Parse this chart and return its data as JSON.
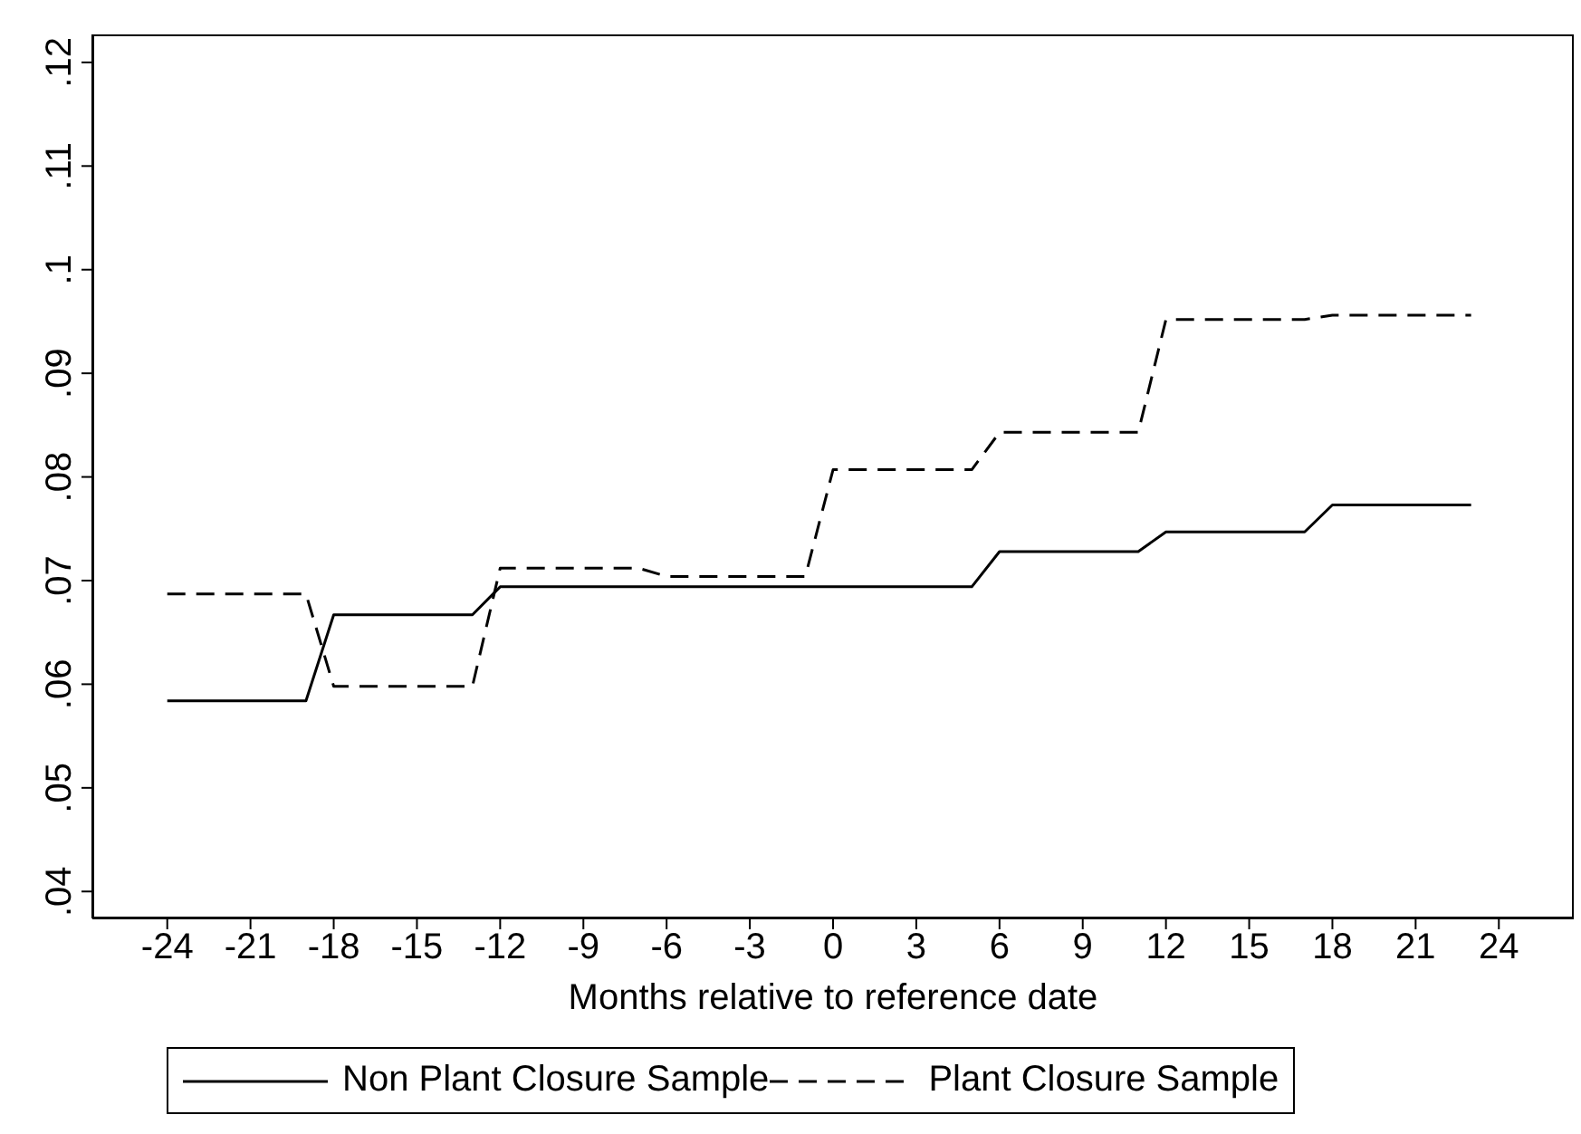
{
  "chart_data": {
    "type": "line",
    "xlabel": "Months relative to reference date",
    "x": [
      -24,
      -23,
      -22,
      -21,
      -20,
      -19,
      -18,
      -17,
      -16,
      -15,
      -14,
      -13,
      -12,
      -11,
      -10,
      -9,
      -8,
      -7,
      -6,
      -5,
      -4,
      -3,
      -2,
      -1,
      0,
      1,
      2,
      3,
      4,
      5,
      6,
      7,
      8,
      9,
      10,
      11,
      12,
      13,
      14,
      15,
      16,
      17,
      18,
      19,
      20,
      21,
      22,
      23
    ],
    "series": [
      {
        "name": "Non Plant Closure Sample",
        "color": "#000000",
        "line_style": "solid",
        "values": [
          0.0584,
          0.0584,
          0.0584,
          0.0584,
          0.0584,
          0.0584,
          0.0667,
          0.0667,
          0.0667,
          0.0667,
          0.0667,
          0.0667,
          0.0694,
          0.0694,
          0.0694,
          0.0694,
          0.0694,
          0.0694,
          0.0694,
          0.0694,
          0.0694,
          0.0694,
          0.0694,
          0.0694,
          0.0694,
          0.0694,
          0.0694,
          0.0694,
          0.0694,
          0.0694,
          0.0728,
          0.0728,
          0.0728,
          0.0728,
          0.0728,
          0.0728,
          0.0747,
          0.0747,
          0.0747,
          0.0747,
          0.0747,
          0.0747,
          0.0773,
          0.0773,
          0.0773,
          0.0773,
          0.0773,
          0.0773
        ]
      },
      {
        "name": "Plant Closure Sample",
        "color": "#000000",
        "line_style": "dashed",
        "values": [
          0.0687,
          0.0687,
          0.0687,
          0.0687,
          0.0687,
          0.0687,
          0.0598,
          0.0598,
          0.0598,
          0.0598,
          0.0598,
          0.0598,
          0.0712,
          0.0712,
          0.0712,
          0.0712,
          0.0712,
          0.0712,
          0.0704,
          0.0704,
          0.0704,
          0.0704,
          0.0704,
          0.0704,
          0.0807,
          0.0807,
          0.0807,
          0.0807,
          0.0807,
          0.0807,
          0.0843,
          0.0843,
          0.0843,
          0.0843,
          0.0843,
          0.0843,
          0.0952,
          0.0952,
          0.0952,
          0.0952,
          0.0952,
          0.0952,
          0.0956,
          0.0956,
          0.0956,
          0.0956,
          0.0956,
          0.0956
        ]
      }
    ],
    "xlim": [
      -26.7,
      26.7
    ],
    "xticks": [
      -24,
      -21,
      -18,
      -15,
      -12,
      -9,
      -6,
      -3,
      0,
      3,
      6,
      9,
      12,
      15,
      18,
      21,
      24
    ],
    "ylim": [
      0.0374,
      0.1227
    ],
    "yticks": [
      {
        "value": 0.04,
        "label": ".04"
      },
      {
        "value": 0.05,
        "label": ".05"
      },
      {
        "value": 0.06,
        "label": ".06"
      },
      {
        "value": 0.07,
        "label": ".07"
      },
      {
        "value": 0.08,
        "label": ".08"
      },
      {
        "value": 0.09,
        "label": ".09"
      },
      {
        "value": 0.1,
        "label": ".1"
      },
      {
        "value": 0.11,
        "label": ".11"
      },
      {
        "value": 0.12,
        "label": ".12"
      }
    ],
    "grid": false,
    "legend": "bottom",
    "marker": "none"
  }
}
